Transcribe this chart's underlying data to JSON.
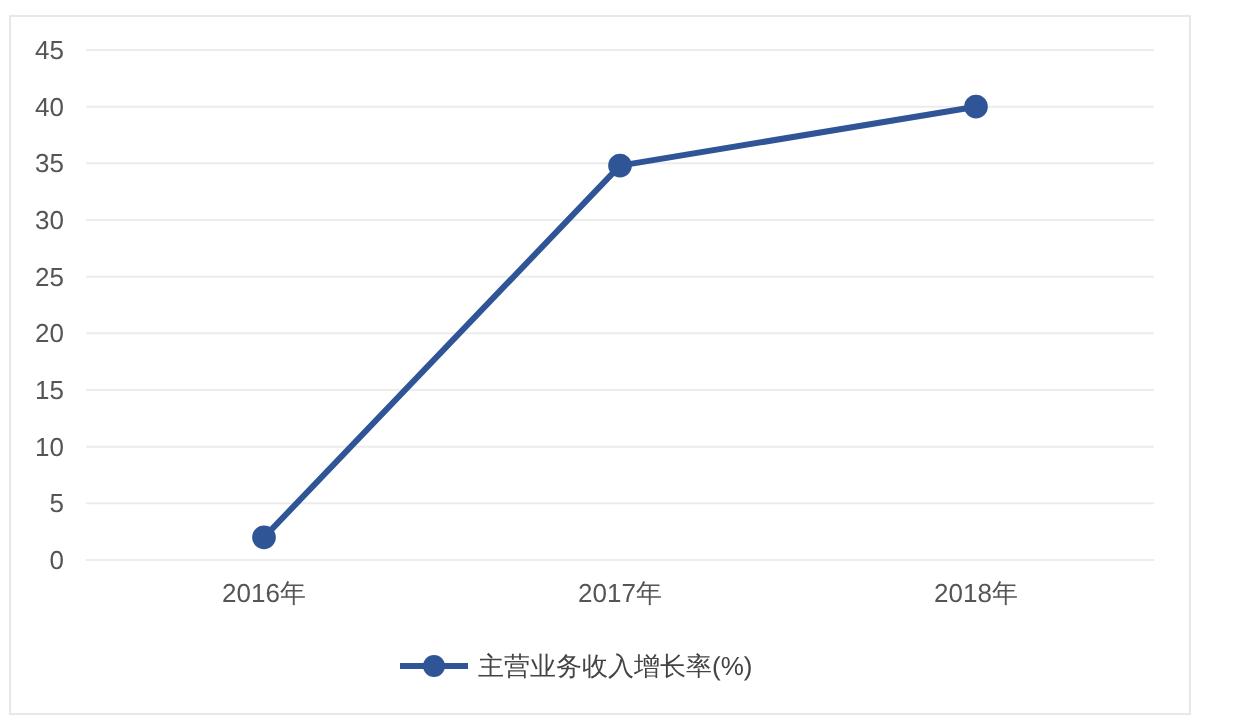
{
  "chart_data": {
    "type": "line",
    "categories": [
      "2016年",
      "2017年",
      "2018年"
    ],
    "series": [
      {
        "name": "主营业务收入增长率(%)",
        "color": "#2f5597",
        "values": [
          2,
          34.8,
          40
        ]
      }
    ],
    "ylim": [
      0,
      45
    ],
    "yticks": [
      0,
      5,
      10,
      15,
      20,
      25,
      30,
      35,
      40,
      45
    ],
    "grid": "y",
    "legend": "bottom",
    "marker": "circle",
    "line_style": "solid"
  }
}
